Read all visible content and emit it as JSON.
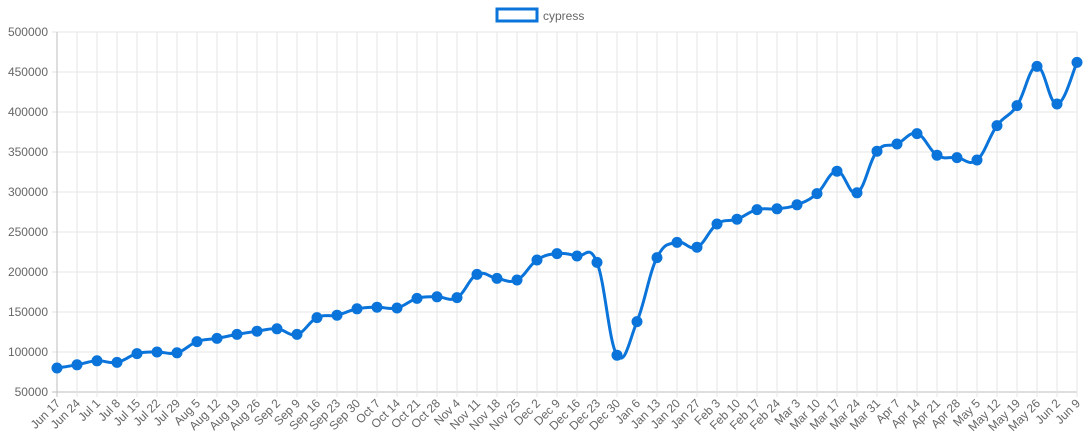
{
  "chart_data": {
    "type": "line",
    "x": [
      "Jun 17",
      "Jun 24",
      "Jul 1",
      "Jul 8",
      "Jul 15",
      "Jul 22",
      "Jul 29",
      "Aug 5",
      "Aug 12",
      "Aug 19",
      "Aug 26",
      "Sep 2",
      "Sep 9",
      "Sep 16",
      "Sep 23",
      "Sep 30",
      "Oct 7",
      "Oct 14",
      "Oct 21",
      "Oct 28",
      "Nov 4",
      "Nov 11",
      "Nov 18",
      "Nov 25",
      "Dec 2",
      "Dec 9",
      "Dec 16",
      "Dec 23",
      "Dec 30",
      "Jan 6",
      "Jan 13",
      "Jan 20",
      "Jan 27",
      "Feb 3",
      "Feb 10",
      "Feb 17",
      "Feb 24",
      "Mar 3",
      "Mar 10",
      "Mar 17",
      "Mar 24",
      "Mar 31",
      "Apr 7",
      "Apr 14",
      "Apr 21",
      "Apr 28",
      "May 5",
      "May 12",
      "May 19",
      "May 26",
      "Jun 2",
      "Jun 9"
    ],
    "series": [
      {
        "name": "cypress",
        "color": "#0a74da",
        "values": [
          80000,
          84000,
          89000,
          87000,
          98000,
          100000,
          99000,
          113000,
          117000,
          122000,
          126000,
          129000,
          122000,
          143000,
          146000,
          154000,
          156000,
          155000,
          167000,
          169000,
          168000,
          197000,
          192000,
          190000,
          215000,
          223000,
          220000,
          212000,
          96000,
          138000,
          218000,
          237000,
          231000,
          260000,
          266000,
          278000,
          279000,
          284000,
          298000,
          326000,
          299000,
          351000,
          360000,
          373000,
          346000,
          343000,
          340000,
          383000,
          408000,
          457000,
          410000,
          462000
        ]
      }
    ],
    "y_ticks": [
      "50000",
      "100000",
      "150000",
      "200000",
      "250000",
      "300000",
      "350000",
      "400000",
      "450000",
      "500000"
    ],
    "ylim": [
      50000,
      500000
    ],
    "grid": true,
    "legend_position": "top-center",
    "title": "",
    "xlabel": "",
    "ylabel": ""
  }
}
